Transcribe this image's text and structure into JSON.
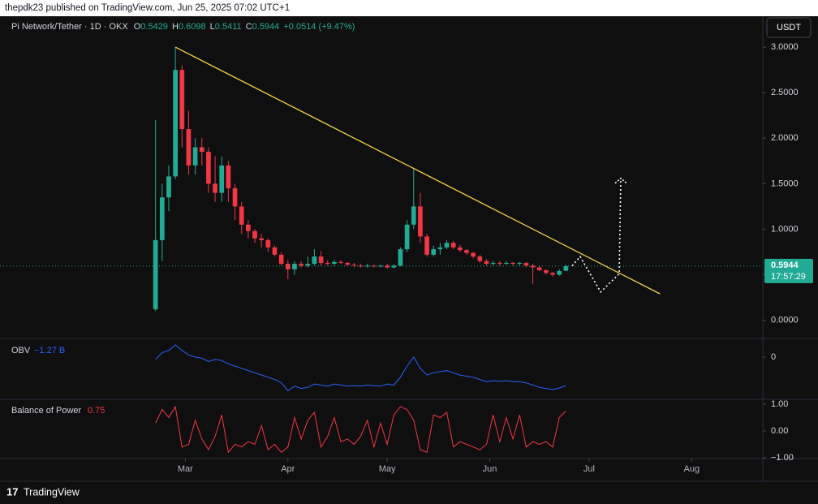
{
  "header": "thepdk23 published on TradingView.com, Jun 25, 2025 07:02 UTC+1",
  "footer": "TradingView",
  "chart_data": [
    {
      "type": "candlestick",
      "title": "Pi Network/Tether · 1D · OKX",
      "ohlc_letters": [
        "O",
        "H",
        "L",
        "C"
      ],
      "change_label": "+0.0514 (+9.47%)",
      "currency": "USDT",
      "countdown": "17:57:29",
      "up_color": "#22ab94",
      "down_color": "#f23645",
      "xlim": [
        4,
        234.5
      ],
      "xticks": [
        {
          "value": 60,
          "label": "Mar"
        },
        {
          "value": 91,
          "label": "Apr"
        },
        {
          "value": 121,
          "label": "May"
        },
        {
          "value": 152,
          "label": "Jun"
        },
        {
          "value": 182,
          "label": "Jul"
        },
        {
          "value": 213,
          "label": "Aug"
        }
      ],
      "ylim": [
        -0.2,
        3.34
      ],
      "yticks": [
        {
          "value": 0,
          "label": "0.0000"
        },
        {
          "value": 0.5,
          "label": "0.5000"
        },
        {
          "value": 1,
          "label": "1.0000"
        },
        {
          "value": 1.5,
          "label": "1.5000"
        },
        {
          "value": 2,
          "label": "2.0000"
        },
        {
          "value": 2.5,
          "label": "2.5000"
        },
        {
          "value": 3,
          "label": "3.0000"
        }
      ],
      "x": [
        51,
        53,
        55,
        57,
        59,
        61,
        63,
        65,
        67,
        69,
        71,
        73,
        75,
        77,
        79,
        81,
        83,
        85,
        87,
        89,
        91,
        93,
        95,
        97,
        99,
        101,
        103,
        105,
        107,
        109,
        111,
        113,
        115,
        117,
        119,
        121,
        123,
        125,
        127,
        129,
        131,
        133,
        135,
        137,
        139,
        141,
        143,
        145,
        147,
        149,
        151,
        153,
        155,
        157,
        159,
        161,
        163,
        165,
        167,
        169,
        171,
        173,
        175
      ],
      "open": [
        0.12,
        0.88,
        1.35,
        1.58,
        2.75,
        2.1,
        1.7,
        1.9,
        1.85,
        1.5,
        1.4,
        1.7,
        1.45,
        1.25,
        1.05,
        0.98,
        0.9,
        0.88,
        0.8,
        0.72,
        0.62,
        0.56,
        0.62,
        0.6,
        0.62,
        0.7,
        0.63,
        0.62,
        0.64,
        0.63,
        0.61,
        0.6,
        0.59,
        0.6,
        0.59,
        0.6,
        0.58,
        0.6,
        0.78,
        1.05,
        1.25,
        0.92,
        0.72,
        0.78,
        0.8,
        0.85,
        0.8,
        0.77,
        0.74,
        0.7,
        0.65,
        0.62,
        0.63,
        0.62,
        0.63,
        0.62,
        0.63,
        0.6,
        0.58,
        0.55,
        0.52,
        0.5,
        0.5429
      ],
      "high": [
        2.2,
        1.5,
        1.7,
        3.0,
        2.8,
        2.3,
        2.0,
        2.0,
        1.9,
        1.8,
        1.8,
        1.75,
        1.5,
        1.3,
        1.1,
        1.0,
        0.95,
        0.9,
        0.82,
        0.75,
        0.66,
        0.65,
        0.65,
        0.7,
        0.78,
        0.76,
        0.66,
        0.66,
        0.66,
        0.64,
        0.63,
        0.62,
        0.62,
        0.61,
        0.61,
        0.62,
        0.62,
        0.8,
        1.1,
        1.67,
        1.4,
        0.95,
        0.82,
        0.85,
        0.88,
        0.87,
        0.83,
        0.78,
        0.75,
        0.72,
        0.67,
        0.65,
        0.65,
        0.65,
        0.64,
        0.64,
        0.64,
        0.62,
        0.6,
        0.56,
        0.53,
        0.56,
        0.6098
      ],
      "low": [
        0.1,
        0.65,
        1.2,
        1.55,
        1.9,
        1.6,
        1.6,
        1.7,
        1.4,
        1.3,
        1.3,
        1.3,
        1.1,
        0.95,
        0.9,
        0.85,
        0.8,
        0.75,
        0.7,
        0.6,
        0.45,
        0.5,
        0.58,
        0.58,
        0.6,
        0.6,
        0.6,
        0.6,
        0.62,
        0.6,
        0.58,
        0.58,
        0.58,
        0.58,
        0.58,
        0.57,
        0.57,
        0.59,
        0.75,
        1.0,
        0.85,
        0.7,
        0.7,
        0.72,
        0.78,
        0.78,
        0.75,
        0.72,
        0.68,
        0.63,
        0.6,
        0.6,
        0.6,
        0.61,
        0.6,
        0.6,
        0.58,
        0.4,
        0.54,
        0.5,
        0.48,
        0.49,
        0.5411
      ],
      "close": [
        0.88,
        1.35,
        1.58,
        2.75,
        2.1,
        1.7,
        1.9,
        1.85,
        1.5,
        1.4,
        1.7,
        1.45,
        1.25,
        1.05,
        0.98,
        0.9,
        0.88,
        0.8,
        0.72,
        0.62,
        0.56,
        0.62,
        0.6,
        0.62,
        0.7,
        0.63,
        0.62,
        0.64,
        0.63,
        0.61,
        0.6,
        0.59,
        0.6,
        0.59,
        0.6,
        0.58,
        0.6,
        0.78,
        1.05,
        1.25,
        0.92,
        0.72,
        0.78,
        0.8,
        0.85,
        0.8,
        0.77,
        0.74,
        0.7,
        0.65,
        0.62,
        0.63,
        0.62,
        0.63,
        0.62,
        0.63,
        0.6,
        0.58,
        0.55,
        0.52,
        0.5,
        0.54,
        0.5944
      ],
      "trendline": {
        "color": "#f5d547",
        "x": [
          57,
          203.4
        ],
        "y": [
          3.0,
          0.29
        ]
      },
      "projection": {
        "color": "#ffffff",
        "x": [
          176.9,
          179.3,
          185.5,
          191.1,
          191.6
        ],
        "y": [
          0.597,
          0.7,
          0.31,
          0.51,
          1.56
        ]
      }
    },
    {
      "type": "line",
      "title": "OBV",
      "last_value_label": "−1.27 B",
      "color": "#2962ff",
      "xlim": [
        4,
        234.5
      ],
      "ylim": [
        -1.85,
        0.8
      ],
      "yticks": [
        0
      ],
      "x": [
        51,
        53,
        55,
        57,
        59,
        61,
        63,
        65,
        67,
        69,
        71,
        73,
        75,
        77,
        79,
        81,
        83,
        85,
        87,
        89,
        91,
        93,
        95,
        97,
        99,
        101,
        103,
        105,
        107,
        109,
        111,
        113,
        115,
        117,
        119,
        121,
        123,
        125,
        127,
        129,
        131,
        133,
        135,
        137,
        139,
        141,
        143,
        145,
        147,
        149,
        151,
        153,
        155,
        157,
        159,
        161,
        163,
        165,
        167,
        169,
        171,
        173,
        175
      ],
      "values": [
        -0.1,
        0.2,
        0.3,
        0.55,
        0.3,
        0.1,
        0.0,
        -0.05,
        -0.2,
        -0.1,
        -0.15,
        -0.3,
        -0.4,
        -0.5,
        -0.6,
        -0.7,
        -0.8,
        -0.9,
        -1.0,
        -1.15,
        -1.5,
        -1.3,
        -1.4,
        -1.35,
        -1.2,
        -1.25,
        -1.3,
        -1.2,
        -1.25,
        -1.3,
        -1.28,
        -1.3,
        -1.25,
        -1.28,
        -1.3,
        -1.2,
        -1.25,
        -0.9,
        -0.4,
        0.0,
        -0.5,
        -0.8,
        -0.7,
        -0.65,
        -0.6,
        -0.7,
        -0.8,
        -0.85,
        -0.9,
        -1.0,
        -1.1,
        -1.05,
        -1.08,
        -1.05,
        -1.1,
        -1.1,
        -1.15,
        -1.25,
        -1.35,
        -1.4,
        -1.45,
        -1.38,
        -1.27
      ]
    },
    {
      "type": "line",
      "title": "Balance of Power",
      "color": "#f23645",
      "xlim": [
        4,
        234.5
      ],
      "ylim": [
        -1.03,
        1.18
      ],
      "yticks": [
        {
          "value": 1,
          "label": "1.00"
        },
        {
          "value": 0,
          "label": "0.00"
        },
        {
          "value": -1,
          "label": "−1.00"
        }
      ],
      "x": [
        51,
        53,
        55,
        57,
        59,
        61,
        63,
        65,
        67,
        69,
        71,
        73,
        75,
        77,
        79,
        81,
        83,
        85,
        87,
        89,
        91,
        93,
        95,
        97,
        99,
        101,
        103,
        105,
        107,
        109,
        111,
        113,
        115,
        117,
        119,
        121,
        123,
        125,
        127,
        129,
        131,
        133,
        135,
        137,
        139,
        141,
        143,
        145,
        147,
        149,
        151,
        153,
        155,
        157,
        159,
        161,
        163,
        165,
        167,
        169,
        171,
        173,
        175
      ],
      "values": [
        0.3,
        0.8,
        0.5,
        0.9,
        -0.6,
        -0.5,
        0.4,
        -0.3,
        -0.7,
        -0.2,
        0.6,
        -0.8,
        -0.5,
        -0.6,
        -0.4,
        -0.5,
        0.2,
        -0.7,
        -0.5,
        -0.8,
        -0.6,
        0.5,
        -0.3,
        0.4,
        0.7,
        -0.6,
        -0.2,
        0.5,
        -0.4,
        -0.3,
        -0.5,
        -0.2,
        0.4,
        -0.6,
        0.3,
        -0.5,
        0.6,
        0.9,
        0.8,
        0.4,
        -0.7,
        -0.8,
        0.6,
        0.5,
        0.7,
        -0.6,
        -0.4,
        -0.5,
        -0.6,
        -0.7,
        -0.5,
        0.6,
        -0.4,
        0.5,
        -0.3,
        0.6,
        -0.6,
        -0.4,
        -0.5,
        -0.4,
        -0.6,
        0.5,
        0.75
      ]
    }
  ]
}
